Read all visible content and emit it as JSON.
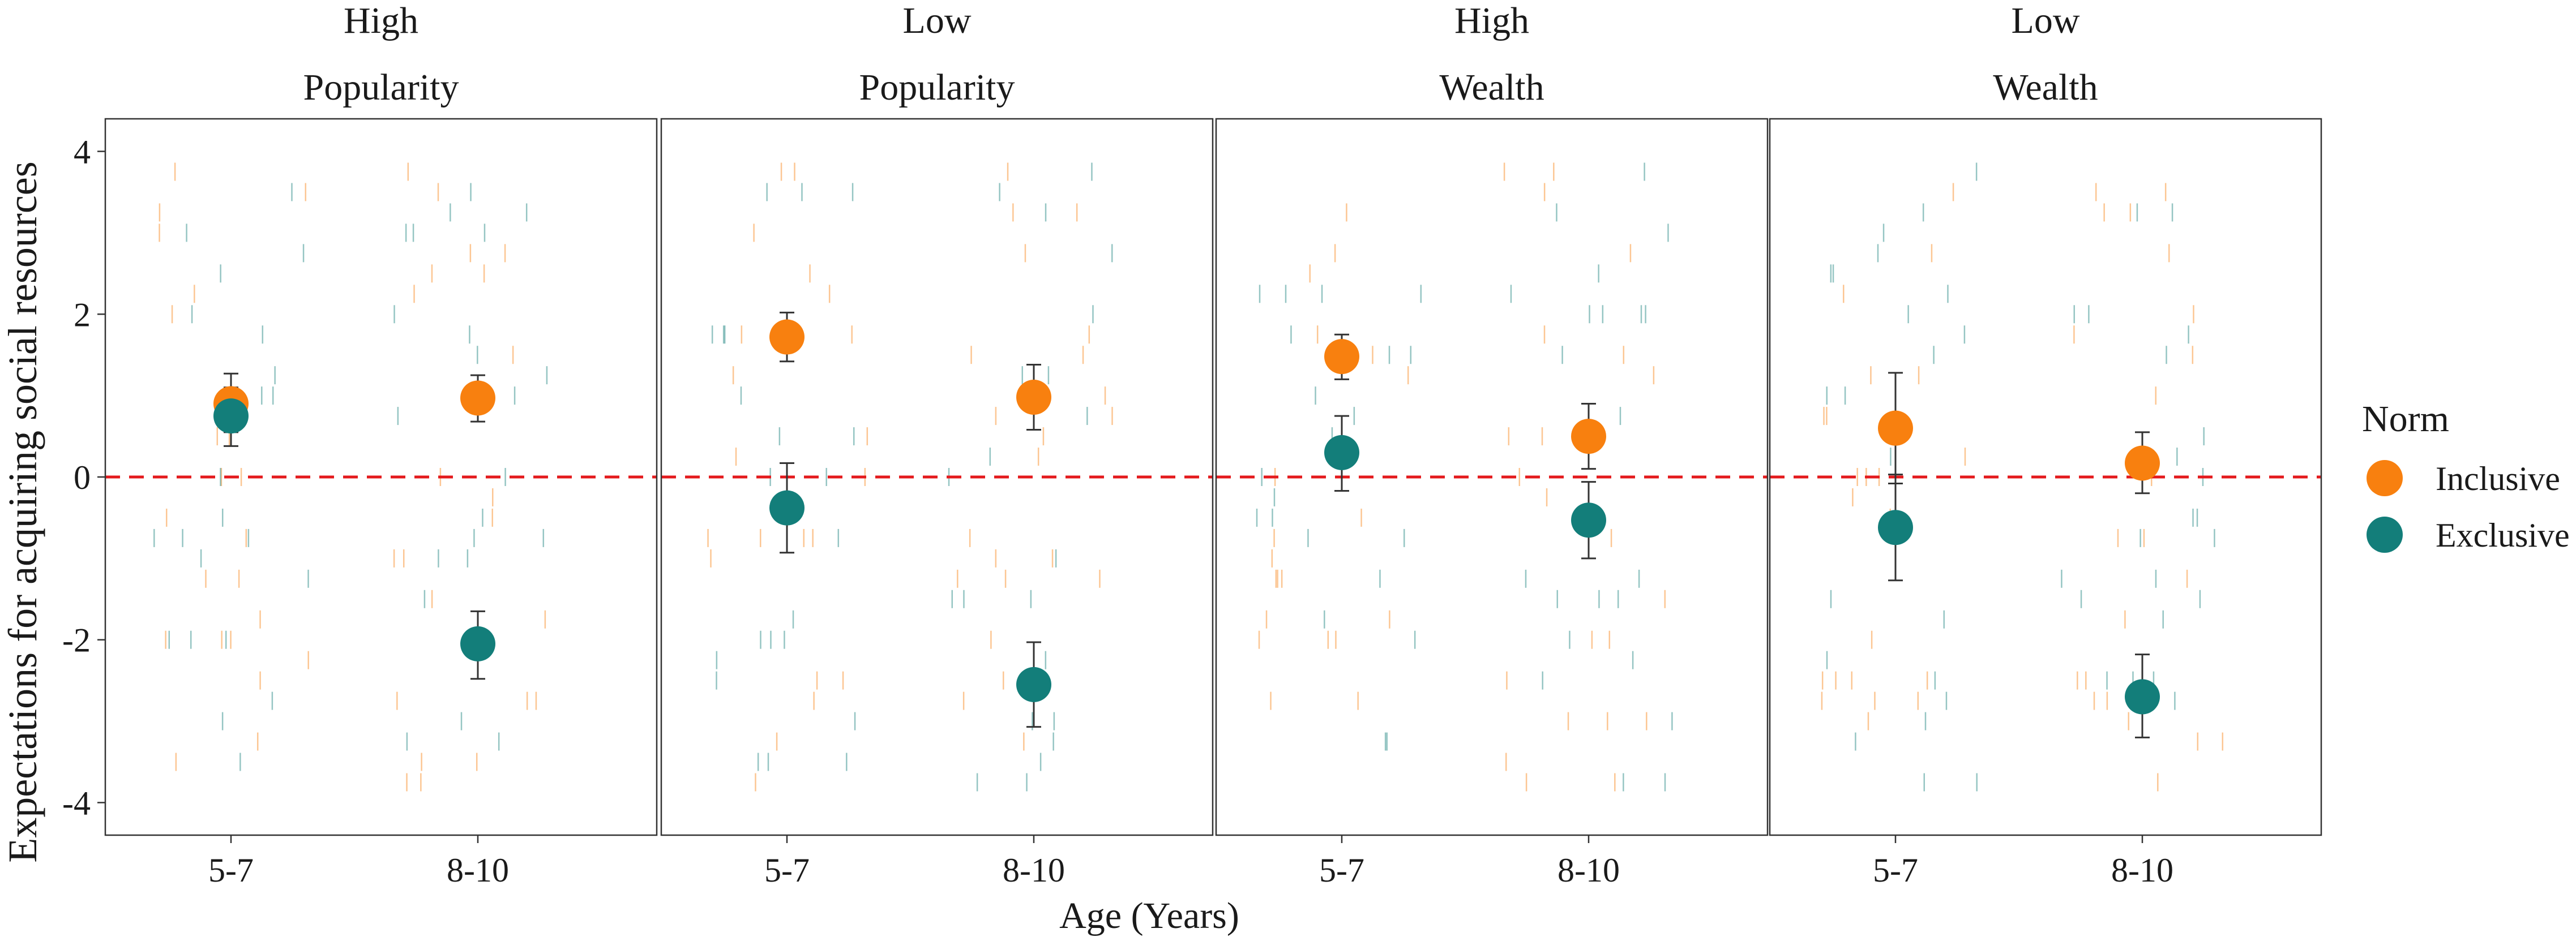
{
  "chart_data": {
    "type": "scatter",
    "title": "",
    "xlabel": "Age (Years)",
    "ylabel": "Expectations for acquiring social resources",
    "ylim": [
      -4.4,
      4.4
    ],
    "yticks": [
      "4",
      "2",
      "0",
      "-2",
      "-4"
    ],
    "ytick_values": [
      4,
      2,
      0,
      -2,
      -4
    ],
    "categories": [
      "5-7",
      "8-10"
    ],
    "reference_line": 0,
    "legend": {
      "title": "Norm",
      "position": "right",
      "entries": [
        {
          "label": "Inclusive",
          "color": "#F8800F"
        },
        {
          "label": "Exclusive",
          "color": "#137E7A"
        }
      ]
    },
    "panels": [
      {
        "strip": [
          "High",
          "Popularity"
        ],
        "series": [
          {
            "name": "Inclusive",
            "means": [
              0.9,
              0.97
            ],
            "ci_low": [
              0.55,
              0.68
            ],
            "ci_high": [
              1.27,
              1.25
            ]
          },
          {
            "name": "Exclusive",
            "means": [
              0.75,
              -2.05
            ],
            "ci_low": [
              0.38,
              -2.48
            ],
            "ci_high": [
              1.1,
              -1.65
            ]
          }
        ]
      },
      {
        "strip": [
          "Low",
          "Popularity"
        ],
        "series": [
          {
            "name": "Inclusive",
            "means": [
              1.72,
              0.98
            ],
            "ci_low": [
              1.42,
              0.58
            ],
            "ci_high": [
              2.02,
              1.38
            ]
          },
          {
            "name": "Exclusive",
            "means": [
              -0.38,
              -2.55
            ],
            "ci_low": [
              -0.93,
              -3.07
            ],
            "ci_high": [
              0.17,
              -2.03
            ]
          }
        ]
      },
      {
        "strip": [
          "High",
          "Wealth"
        ],
        "series": [
          {
            "name": "Inclusive",
            "means": [
              1.48,
              0.5
            ],
            "ci_low": [
              1.2,
              0.1
            ],
            "ci_high": [
              1.75,
              0.9
            ]
          },
          {
            "name": "Exclusive",
            "means": [
              0.3,
              -0.53
            ],
            "ci_low": [
              -0.17,
              -1.0
            ],
            "ci_high": [
              0.75,
              -0.06
            ]
          }
        ]
      },
      {
        "strip": [
          "Low",
          "Wealth"
        ],
        "series": [
          {
            "name": "Inclusive",
            "means": [
              0.6,
              0.17
            ],
            "ci_low": [
              -0.08,
              -0.2
            ],
            "ci_high": [
              1.28,
              0.55
            ]
          },
          {
            "name": "Exclusive",
            "means": [
              -0.62,
              -2.7
            ],
            "ci_low": [
              -1.27,
              -3.2
            ],
            "ci_high": [
              0.03,
              -2.18
            ]
          }
        ]
      }
    ]
  }
}
